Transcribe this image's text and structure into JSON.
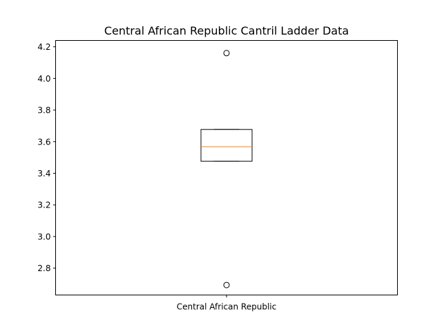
{
  "chart_data": {
    "type": "box",
    "title": "Central African Republic Cantril Ladder Data",
    "xlabel": "",
    "ylabel": "",
    "categories": [
      "Central African Republic"
    ],
    "ylim": [
      2.63,
      4.24
    ],
    "yticks": [
      2.8,
      3.0,
      3.2,
      3.4,
      3.6,
      3.8,
      4.0,
      4.2
    ],
    "ytick_labels": [
      "2.8",
      "3.0",
      "3.2",
      "3.4",
      "3.6",
      "3.8",
      "4.0",
      "4.2"
    ],
    "boxes": [
      {
        "category": "Central African Republic",
        "q1": 3.476,
        "median": 3.568,
        "q3": 3.677,
        "whisker_low": 3.476,
        "whisker_high": 3.677,
        "outliers": [
          4.16,
          2.693
        ]
      }
    ],
    "grid": false,
    "colors": {
      "box": "#000000",
      "median": "#ff7f0e",
      "outlier_edge": "#000000"
    }
  }
}
